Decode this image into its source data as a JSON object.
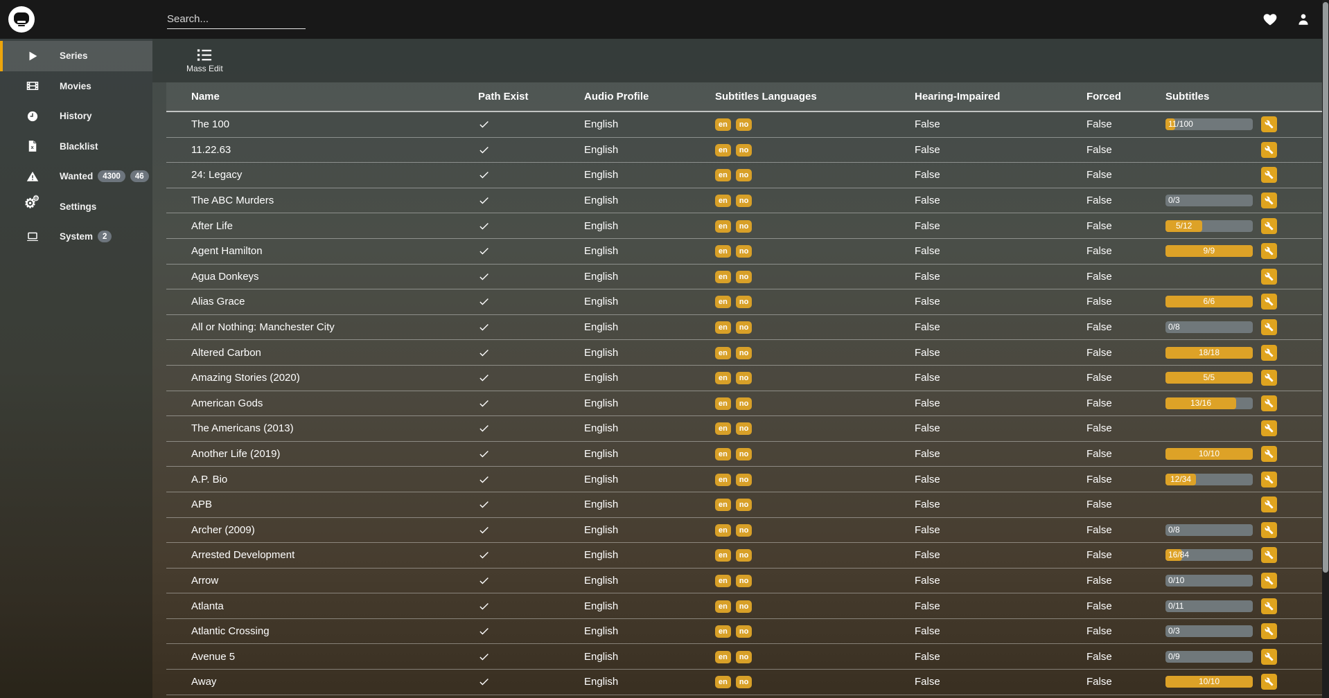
{
  "topbar": {
    "search_placeholder": "Search...",
    "icons": [
      "heart-icon",
      "user-icon"
    ]
  },
  "sidebar": {
    "items": [
      {
        "label": "Series",
        "icon": "play-icon",
        "selected": true,
        "badges": []
      },
      {
        "label": "Movies",
        "icon": "film-icon",
        "selected": false,
        "badges": []
      },
      {
        "label": "History",
        "icon": "clock-icon",
        "selected": false,
        "badges": []
      },
      {
        "label": "Blacklist",
        "icon": "file-x-icon",
        "selected": false,
        "badges": []
      },
      {
        "label": "Wanted",
        "icon": "warning-icon",
        "selected": false,
        "badges": [
          "4300",
          "46"
        ]
      },
      {
        "label": "Settings",
        "icon": "gears-icon",
        "selected": false,
        "badges": []
      },
      {
        "label": "System",
        "icon": "laptop-icon",
        "selected": false,
        "badges": [
          "2"
        ]
      }
    ]
  },
  "toolbar": {
    "mass_edit_label": "Mass Edit",
    "mass_edit_icon": "list-icon"
  },
  "table": {
    "columns": [
      "Name",
      "Path Exist",
      "Audio Profile",
      "Subtitles Languages",
      "Hearing-Impaired",
      "Forced",
      "Subtitles"
    ],
    "rows": [
      {
        "name": "The 100",
        "path_exist": true,
        "audio_profile": "English",
        "languages": [
          "en",
          "no"
        ],
        "hearing_impaired": "False",
        "forced": "False",
        "subtitles": {
          "have": 11,
          "total": 100
        }
      },
      {
        "name": "11.22.63",
        "path_exist": true,
        "audio_profile": "English",
        "languages": [
          "en",
          "no"
        ],
        "hearing_impaired": "False",
        "forced": "False",
        "subtitles": null
      },
      {
        "name": "24: Legacy",
        "path_exist": true,
        "audio_profile": "English",
        "languages": [
          "en",
          "no"
        ],
        "hearing_impaired": "False",
        "forced": "False",
        "subtitles": null
      },
      {
        "name": "The ABC Murders",
        "path_exist": true,
        "audio_profile": "English",
        "languages": [
          "en",
          "no"
        ],
        "hearing_impaired": "False",
        "forced": "False",
        "subtitles": {
          "have": 0,
          "total": 3
        }
      },
      {
        "name": "After Life",
        "path_exist": true,
        "audio_profile": "English",
        "languages": [
          "en",
          "no"
        ],
        "hearing_impaired": "False",
        "forced": "False",
        "subtitles": {
          "have": 5,
          "total": 12
        }
      },
      {
        "name": "Agent Hamilton",
        "path_exist": true,
        "audio_profile": "English",
        "languages": [
          "en",
          "no"
        ],
        "hearing_impaired": "False",
        "forced": "False",
        "subtitles": {
          "have": 9,
          "total": 9
        }
      },
      {
        "name": "Agua Donkeys",
        "path_exist": true,
        "audio_profile": "English",
        "languages": [
          "en",
          "no"
        ],
        "hearing_impaired": "False",
        "forced": "False",
        "subtitles": null
      },
      {
        "name": "Alias Grace",
        "path_exist": true,
        "audio_profile": "English",
        "languages": [
          "en",
          "no"
        ],
        "hearing_impaired": "False",
        "forced": "False",
        "subtitles": {
          "have": 6,
          "total": 6
        }
      },
      {
        "name": "All or Nothing: Manchester City",
        "path_exist": true,
        "audio_profile": "English",
        "languages": [
          "en",
          "no"
        ],
        "hearing_impaired": "False",
        "forced": "False",
        "subtitles": {
          "have": 0,
          "total": 8
        }
      },
      {
        "name": "Altered Carbon",
        "path_exist": true,
        "audio_profile": "English",
        "languages": [
          "en",
          "no"
        ],
        "hearing_impaired": "False",
        "forced": "False",
        "subtitles": {
          "have": 18,
          "total": 18
        }
      },
      {
        "name": "Amazing Stories (2020)",
        "path_exist": true,
        "audio_profile": "English",
        "languages": [
          "en",
          "no"
        ],
        "hearing_impaired": "False",
        "forced": "False",
        "subtitles": {
          "have": 5,
          "total": 5
        }
      },
      {
        "name": "American Gods",
        "path_exist": true,
        "audio_profile": "English",
        "languages": [
          "en",
          "no"
        ],
        "hearing_impaired": "False",
        "forced": "False",
        "subtitles": {
          "have": 13,
          "total": 16
        }
      },
      {
        "name": "The Americans (2013)",
        "path_exist": true,
        "audio_profile": "English",
        "languages": [
          "en",
          "no"
        ],
        "hearing_impaired": "False",
        "forced": "False",
        "subtitles": null
      },
      {
        "name": "Another Life (2019)",
        "path_exist": true,
        "audio_profile": "English",
        "languages": [
          "en",
          "no"
        ],
        "hearing_impaired": "False",
        "forced": "False",
        "subtitles": {
          "have": 10,
          "total": 10
        }
      },
      {
        "name": "A.P. Bio",
        "path_exist": true,
        "audio_profile": "English",
        "languages": [
          "en",
          "no"
        ],
        "hearing_impaired": "False",
        "forced": "False",
        "subtitles": {
          "have": 12,
          "total": 34
        }
      },
      {
        "name": "APB",
        "path_exist": true,
        "audio_profile": "English",
        "languages": [
          "en",
          "no"
        ],
        "hearing_impaired": "False",
        "forced": "False",
        "subtitles": null
      },
      {
        "name": "Archer (2009)",
        "path_exist": true,
        "audio_profile": "English",
        "languages": [
          "en",
          "no"
        ],
        "hearing_impaired": "False",
        "forced": "False",
        "subtitles": {
          "have": 0,
          "total": 8
        }
      },
      {
        "name": "Arrested Development",
        "path_exist": true,
        "audio_profile": "English",
        "languages": [
          "en",
          "no"
        ],
        "hearing_impaired": "False",
        "forced": "False",
        "subtitles": {
          "have": 16,
          "total": 84
        }
      },
      {
        "name": "Arrow",
        "path_exist": true,
        "audio_profile": "English",
        "languages": [
          "en",
          "no"
        ],
        "hearing_impaired": "False",
        "forced": "False",
        "subtitles": {
          "have": 0,
          "total": 10
        }
      },
      {
        "name": "Atlanta",
        "path_exist": true,
        "audio_profile": "English",
        "languages": [
          "en",
          "no"
        ],
        "hearing_impaired": "False",
        "forced": "False",
        "subtitles": {
          "have": 0,
          "total": 11
        }
      },
      {
        "name": "Atlantic Crossing",
        "path_exist": true,
        "audio_profile": "English",
        "languages": [
          "en",
          "no"
        ],
        "hearing_impaired": "False",
        "forced": "False",
        "subtitles": {
          "have": 0,
          "total": 3
        }
      },
      {
        "name": "Avenue 5",
        "path_exist": true,
        "audio_profile": "English",
        "languages": [
          "en",
          "no"
        ],
        "hearing_impaired": "False",
        "forced": "False",
        "subtitles": {
          "have": 0,
          "total": 9
        }
      },
      {
        "name": "Away",
        "path_exist": true,
        "audio_profile": "English",
        "languages": [
          "en",
          "no"
        ],
        "hearing_impaired": "False",
        "forced": "False",
        "subtitles": {
          "have": 10,
          "total": 10
        }
      }
    ]
  },
  "colors": {
    "accent": "#dfa41f",
    "badge_grey": "#6d757d",
    "progress_track": "#70787b",
    "topbar_bg": "#181818",
    "sidebar_selected_border": "#eda50c"
  }
}
